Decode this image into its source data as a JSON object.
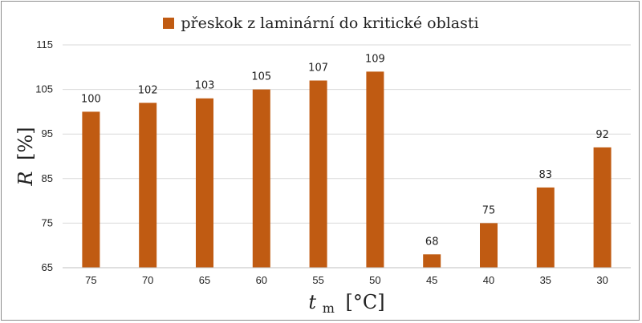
{
  "chart_data": {
    "type": "bar",
    "categories": [
      "75",
      "70",
      "65",
      "60",
      "55",
      "50",
      "45",
      "40",
      "35",
      "30"
    ],
    "series": [
      {
        "name": "přeskok z laminární do kritické oblasti",
        "values": [
          100,
          102,
          103,
          105,
          107,
          109,
          68,
          75,
          83,
          92
        ]
      }
    ],
    "ylim": [
      65,
      115
    ],
    "yticks": [
      65,
      75,
      85,
      95,
      105,
      115
    ],
    "xlabel": {
      "main": "t",
      "sub": "m",
      "unit": "[°C]"
    },
    "ylabel": {
      "main": "R",
      "unit": "[%]"
    },
    "legend_position": "top-center",
    "bar_color": "#c05b12",
    "grid": "horizontal"
  }
}
